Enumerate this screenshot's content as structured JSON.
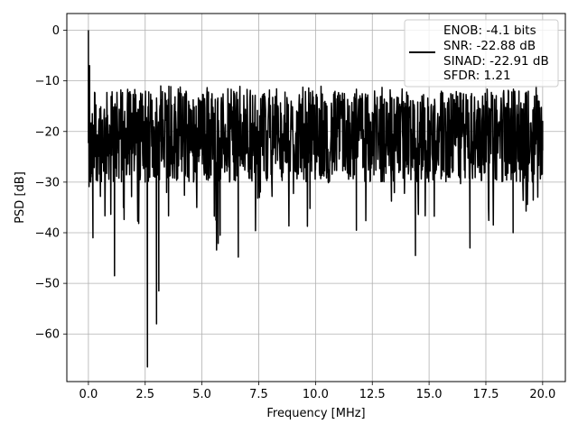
{
  "chart_data": {
    "type": "line",
    "title": "",
    "xlabel": "Frequency [MHz]",
    "ylabel": "PSD [dB]",
    "xlim": [
      -0.95,
      21.0
    ],
    "ylim": [
      -69.4,
      3.3
    ],
    "xticks": [
      0.0,
      2.5,
      5.0,
      7.5,
      10.0,
      12.5,
      15.0,
      17.5,
      20.0
    ],
    "xtick_labels": [
      "0.0",
      "2.5",
      "5.0",
      "7.5",
      "10.0",
      "12.5",
      "15.0",
      "17.5",
      "20.0"
    ],
    "yticks": [
      0,
      -10,
      -20,
      -30,
      -40,
      -50,
      -60
    ],
    "ytick_labels": [
      "0",
      "−10",
      "−20",
      "−30",
      "−40",
      "−50",
      "−60"
    ],
    "grid": true,
    "legend_position": "top-right",
    "legend_lines": [
      "ENOB: -4.1 bits",
      "SNR: -22.88 dB",
      "SINAD: -22.91 dB",
      "SFDR: 1.21"
    ],
    "series": [
      {
        "color": "#000000",
        "description": "noise-like power spectral density, dense trace between about -12 and -32 dB",
        "x": [
          0.0,
          0.02,
          0.05,
          0.1,
          0.2,
          0.5,
          1.0,
          1.15,
          2.0,
          2.5,
          2.6,
          2.7,
          3.0,
          3.1,
          3.2,
          4.0,
          5.0,
          5.8,
          6.6,
          7.5,
          8.5,
          10.0,
          11.8,
          12.5,
          14.4,
          15.0,
          16.8,
          17.5,
          18.7,
          20.0
        ],
        "y": [
          0.0,
          -15.0,
          -7.0,
          -30.0,
          -41.0,
          -25.0,
          -20.0,
          -48.5,
          -22.0,
          -30.0,
          -66.5,
          -25.0,
          -58.0,
          -51.5,
          -22.0,
          -20.0,
          -18.0,
          -40.5,
          -44.8,
          -20.0,
          -18.0,
          -20.0,
          -39.5,
          -20.0,
          -44.5,
          -20.0,
          -43.0,
          -20.0,
          -40.0,
          -18.0
        ]
      }
    ]
  }
}
